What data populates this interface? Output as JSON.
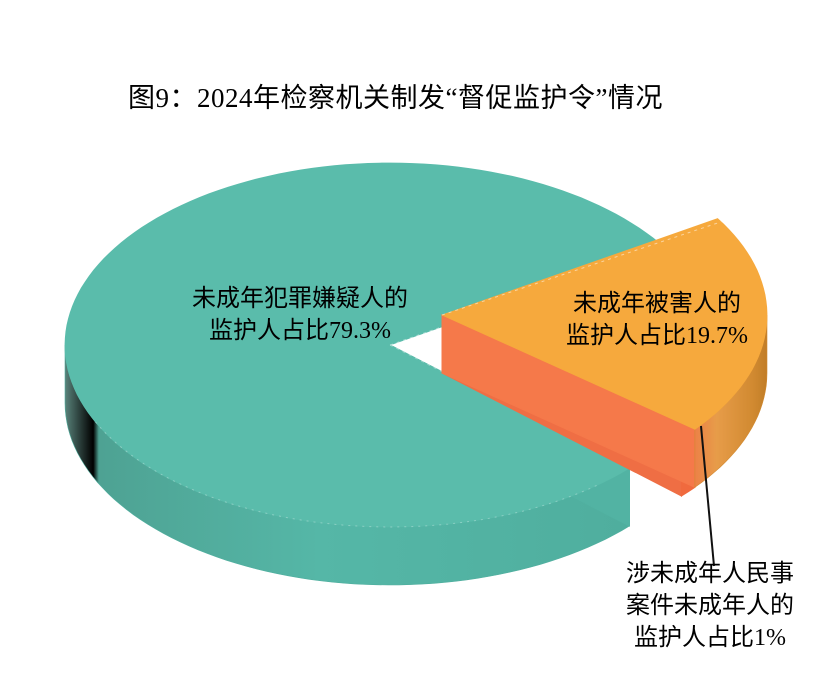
{
  "title": "图9：2024年检察机关制发“督促监护令”情况",
  "chart_data": {
    "type": "pie",
    "style": "3d-exploded",
    "title": "图9：2024年检察机关制发“督促监护令”情况",
    "background": "#FFFFFF",
    "legend_position": "none",
    "label_color": "#000000",
    "leader_line_color": "#111111",
    "slices": [
      {
        "name": "未成年犯罪嫌疑人的监护人",
        "value": 79.3,
        "unit": "%",
        "color": "#5ABCAB",
        "wall_color": "#4FAE9E",
        "cut_color": "#52B3A3",
        "exploded": false,
        "label_lines": [
          "未成年犯罪嫌疑人的",
          "监护人占比79.3%"
        ]
      },
      {
        "name": "未成年被害人的监护人",
        "value": 19.7,
        "unit": "%",
        "color": "#F6A93D",
        "wall_color": "#D98F33",
        "cut_color": "#F5794A",
        "exploded": true,
        "label_lines": [
          "未成年被害人的",
          "监护人占比19.7%"
        ]
      },
      {
        "name": "涉未成年人民事案件未成年人的监护人",
        "value": 1,
        "unit": "%",
        "color": "#F5794A",
        "wall_color": "#F06A3E",
        "cut_color": "#EF6E44",
        "exploded": true,
        "label_lines": [
          "涉未成年人民事",
          "案件未成年人的",
          "监护人占比1%"
        ]
      }
    ]
  }
}
